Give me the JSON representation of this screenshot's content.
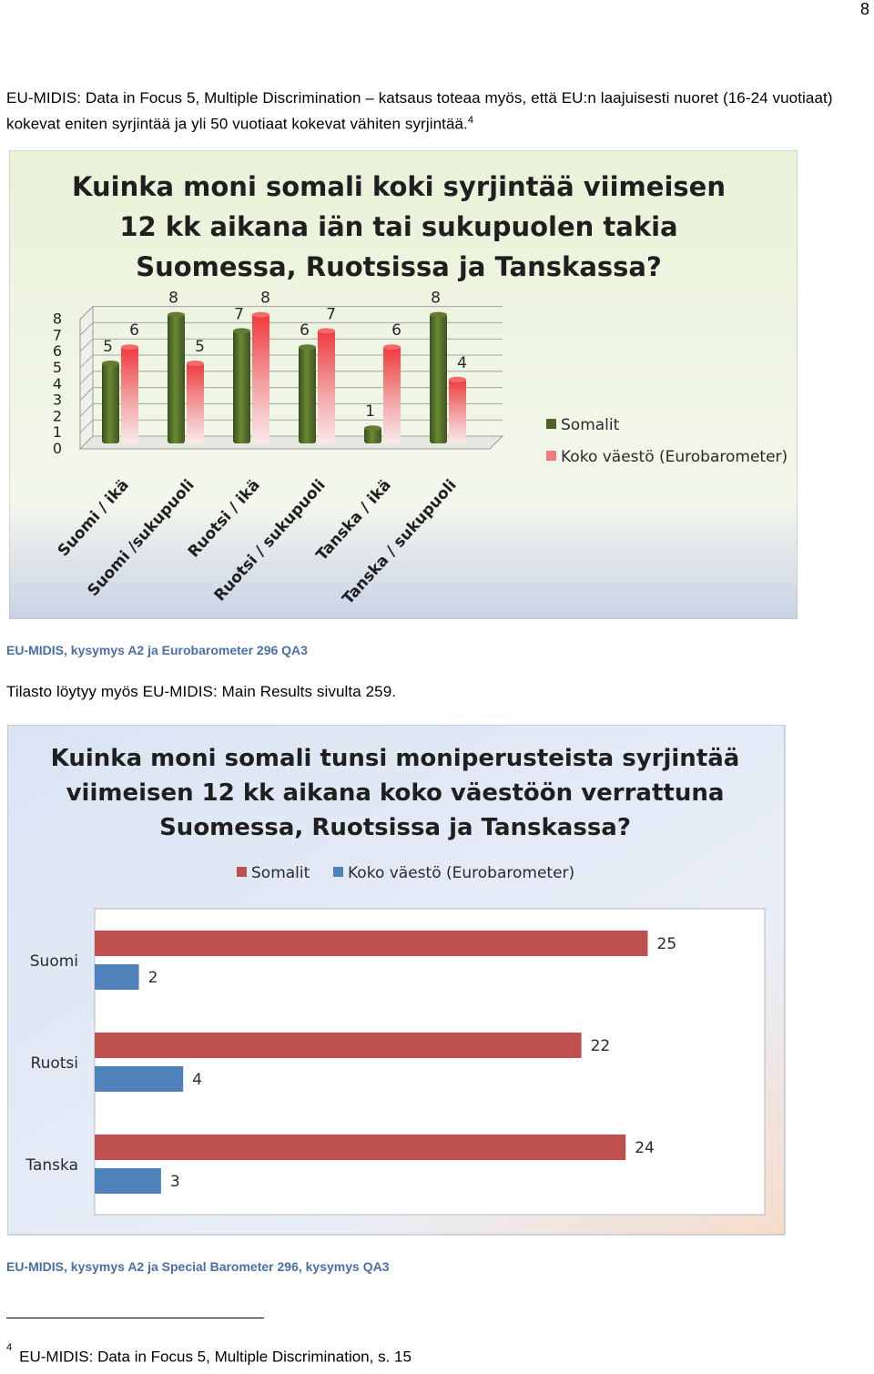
{
  "page": {
    "number": "8",
    "intro_text": "EU-MIDIS: Data in Focus 5, Multiple Discrimination – katsaus toteaa myös, että EU:n laajuisesti nuoret (16-24 vuotiaat) kokevat eniten syrjintää ja yli 50 vuotiaat kokevat vähiten syrjintää.",
    "intro_sup": "4",
    "caption1": "EU-MIDIS, kysymys A2 ja Eurobarometer 296 QA3",
    "mid_text": "Tilasto löytyy myös EU-MIDIS: Main Results sivulta 259.",
    "caption2": "EU-MIDIS, kysymys A2 ja Special Barometer 296, kysymys QA3",
    "footnote_num": "4",
    "footnote_text": "EU-MIDIS: Data in Focus 5, Multiple Discrimination, s. 15"
  },
  "chart_data": [
    {
      "type": "bar",
      "title_lines": [
        "Kuinka moni somali koki syrjintää viimeisen",
        "12 kk aikana iän tai sukupuolen takia",
        "Suomessa, Ruotsissa ja Tanskassa?"
      ],
      "categories": [
        "Suomi / ikä",
        "Suomi /sukupuoli",
        "Ruotsi / ikä",
        "Ruotsi / sukupuoli",
        "Tanska / ikä",
        "Tanska / sukupuoli"
      ],
      "series": [
        {
          "name": "Somalit",
          "values": [
            5,
            8,
            7,
            6,
            1,
            8
          ],
          "color": "#4f6228"
        },
        {
          "name": "Koko väestö (Eurobarometer)",
          "values": [
            6,
            5,
            8,
            7,
            6,
            4
          ],
          "color": "#e8474a"
        }
      ],
      "yticks": [
        "0",
        "1",
        "2",
        "3",
        "4",
        "5",
        "6",
        "7",
        "8"
      ],
      "ylim": [
        0,
        8
      ],
      "legend": "right",
      "grid": true
    },
    {
      "type": "bar",
      "orientation": "horizontal",
      "title_lines": [
        "Kuinka moni somali tunsi moniperusteista syrjintää",
        "viimeisen 12 kk aikana koko väestöön verrattuna",
        "Suomessa, Ruotsissa ja Tanskassa?"
      ],
      "categories": [
        "Suomi",
        "Ruotsi",
        "Tanska"
      ],
      "series": [
        {
          "name": "Somalit",
          "values": [
            25,
            22,
            24
          ],
          "color": "#c0504d"
        },
        {
          "name": "Koko väestö (Eurobarometer)",
          "values": [
            2,
            4,
            3
          ],
          "color": "#4f81bd"
        }
      ],
      "legend": "top",
      "grid": false
    }
  ]
}
